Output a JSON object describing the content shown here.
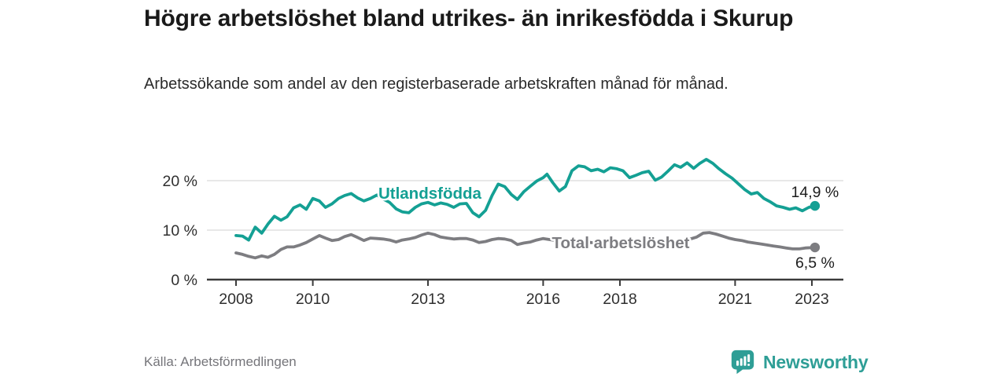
{
  "header": {
    "title": "Högre arbetslöshet bland utrikes- än inrikesfödda i Skurup",
    "subtitle": "Arbetssökande som andel av den registerbaserade arbetskraften månad för månad."
  },
  "footer": {
    "source": "Källa: Arbetsförmedlingen",
    "brand": "Newsworthy",
    "brand_icon": "newsworthy-bar-chart-speech-bubble-icon"
  },
  "colors": {
    "teal": "#14A094",
    "gray": "#7D7D81",
    "grid": "#DBDBDB",
    "axis": "#3B3B3B",
    "title_text": "#1A1A1A",
    "body_text": "#2B2B2B",
    "tick_text": "#2F2F2F",
    "annotation_text": "#1C1C1C",
    "source_text": "#75757A",
    "brand_teal": "#2E9E96"
  },
  "chart_data": {
    "type": "line",
    "x_unit": "year, monthly observations",
    "y_unit": "percent of registered labour force",
    "xlim": [
      2007.25,
      2023.85
    ],
    "ylim": [
      0,
      26
    ],
    "grid": "horizontal gridlines at 10 and 20, dark baseline at 0",
    "legend_position": "inline labels on lines, value annotations at line ends",
    "xticks": [
      2008,
      2010,
      2013,
      2016,
      2018,
      2021,
      2023
    ],
    "yticks": [
      {
        "value": 0,
        "label": "0 %"
      },
      {
        "value": 10,
        "label": "10 %"
      },
      {
        "value": 20,
        "label": "20 %"
      }
    ],
    "series": [
      {
        "name": "Utlandsfödda",
        "color": "#14A094",
        "line_label_at": {
          "t": 2013.05,
          "v": 17.45
        },
        "end_dot": {
          "t": 2023.08,
          "v": 14.9
        },
        "end_annotation": "14,9 %",
        "annotation_side": "above",
        "points": [
          [
            2008.0,
            8.9
          ],
          [
            2008.17,
            8.8
          ],
          [
            2008.33,
            8.0
          ],
          [
            2008.5,
            10.6
          ],
          [
            2008.67,
            9.4
          ],
          [
            2008.83,
            11.2
          ],
          [
            2009.0,
            12.8
          ],
          [
            2009.17,
            12.0
          ],
          [
            2009.33,
            12.7
          ],
          [
            2009.5,
            14.5
          ],
          [
            2009.67,
            15.1
          ],
          [
            2009.83,
            14.2
          ],
          [
            2010.0,
            16.4
          ],
          [
            2010.17,
            15.9
          ],
          [
            2010.33,
            14.6
          ],
          [
            2010.5,
            15.3
          ],
          [
            2010.67,
            16.4
          ],
          [
            2010.83,
            17.0
          ],
          [
            2011.0,
            17.4
          ],
          [
            2011.17,
            16.5
          ],
          [
            2011.33,
            15.9
          ],
          [
            2011.5,
            16.4
          ],
          [
            2011.67,
            17.1
          ],
          [
            2011.83,
            16.3
          ],
          [
            2012.0,
            15.6
          ],
          [
            2012.17,
            14.3
          ],
          [
            2012.33,
            13.7
          ],
          [
            2012.5,
            13.5
          ],
          [
            2012.67,
            14.6
          ],
          [
            2012.83,
            15.3
          ],
          [
            2013.0,
            15.6
          ],
          [
            2013.17,
            15.1
          ],
          [
            2013.33,
            15.5
          ],
          [
            2013.5,
            15.2
          ],
          [
            2013.67,
            14.6
          ],
          [
            2013.83,
            15.3
          ],
          [
            2014.0,
            15.4
          ],
          [
            2014.17,
            13.5
          ],
          [
            2014.33,
            12.7
          ],
          [
            2014.5,
            14.0
          ],
          [
            2014.67,
            17.0
          ],
          [
            2014.83,
            19.3
          ],
          [
            2015.0,
            18.8
          ],
          [
            2015.17,
            17.2
          ],
          [
            2015.33,
            16.2
          ],
          [
            2015.5,
            17.8
          ],
          [
            2015.67,
            18.9
          ],
          [
            2015.83,
            19.9
          ],
          [
            2016.0,
            20.6
          ],
          [
            2016.1,
            21.3
          ],
          [
            2016.25,
            19.6
          ],
          [
            2016.42,
            17.9
          ],
          [
            2016.58,
            18.8
          ],
          [
            2016.75,
            22.0
          ],
          [
            2016.92,
            23.0
          ],
          [
            2017.08,
            22.8
          ],
          [
            2017.25,
            22.0
          ],
          [
            2017.42,
            22.3
          ],
          [
            2017.58,
            21.8
          ],
          [
            2017.75,
            22.6
          ],
          [
            2017.92,
            22.4
          ],
          [
            2018.08,
            22.0
          ],
          [
            2018.25,
            20.6
          ],
          [
            2018.42,
            21.1
          ],
          [
            2018.58,
            21.6
          ],
          [
            2018.75,
            21.9
          ],
          [
            2018.92,
            20.1
          ],
          [
            2019.08,
            20.7
          ],
          [
            2019.25,
            21.9
          ],
          [
            2019.42,
            23.2
          ],
          [
            2019.58,
            22.7
          ],
          [
            2019.75,
            23.6
          ],
          [
            2019.92,
            22.5
          ],
          [
            2020.08,
            23.5
          ],
          [
            2020.25,
            24.3
          ],
          [
            2020.42,
            23.5
          ],
          [
            2020.58,
            22.4
          ],
          [
            2020.75,
            21.4
          ],
          [
            2020.92,
            20.5
          ],
          [
            2021.08,
            19.4
          ],
          [
            2021.25,
            18.2
          ],
          [
            2021.42,
            17.3
          ],
          [
            2021.58,
            17.6
          ],
          [
            2021.75,
            16.4
          ],
          [
            2021.92,
            15.7
          ],
          [
            2022.08,
            14.9
          ],
          [
            2022.25,
            14.6
          ],
          [
            2022.42,
            14.2
          ],
          [
            2022.58,
            14.5
          ],
          [
            2022.75,
            13.9
          ],
          [
            2022.92,
            14.6
          ],
          [
            2023.08,
            14.9
          ]
        ]
      },
      {
        "name": "Total arbetslöshet",
        "color": "#7D7D81",
        "line_label_at": {
          "t": 2018.02,
          "v": 7.45
        },
        "end_dot": {
          "t": 2023.08,
          "v": 6.5
        },
        "end_annotation": "6,5 %",
        "annotation_side": "below",
        "points": [
          [
            2008.0,
            5.4
          ],
          [
            2008.17,
            5.1
          ],
          [
            2008.33,
            4.7
          ],
          [
            2008.5,
            4.4
          ],
          [
            2008.67,
            4.8
          ],
          [
            2008.83,
            4.5
          ],
          [
            2009.0,
            5.1
          ],
          [
            2009.17,
            6.1
          ],
          [
            2009.33,
            6.6
          ],
          [
            2009.5,
            6.6
          ],
          [
            2009.67,
            7.0
          ],
          [
            2009.83,
            7.5
          ],
          [
            2010.0,
            8.2
          ],
          [
            2010.17,
            8.9
          ],
          [
            2010.33,
            8.4
          ],
          [
            2010.5,
            7.9
          ],
          [
            2010.67,
            8.1
          ],
          [
            2010.83,
            8.7
          ],
          [
            2011.0,
            9.1
          ],
          [
            2011.17,
            8.5
          ],
          [
            2011.33,
            7.9
          ],
          [
            2011.5,
            8.4
          ],
          [
            2011.67,
            8.3
          ],
          [
            2011.83,
            8.2
          ],
          [
            2012.0,
            8.0
          ],
          [
            2012.17,
            7.6
          ],
          [
            2012.33,
            8.0
          ],
          [
            2012.5,
            8.2
          ],
          [
            2012.67,
            8.5
          ],
          [
            2012.83,
            9.0
          ],
          [
            2013.0,
            9.4
          ],
          [
            2013.17,
            9.1
          ],
          [
            2013.33,
            8.6
          ],
          [
            2013.5,
            8.4
          ],
          [
            2013.67,
            8.2
          ],
          [
            2013.83,
            8.3
          ],
          [
            2014.0,
            8.3
          ],
          [
            2014.17,
            8.0
          ],
          [
            2014.33,
            7.5
          ],
          [
            2014.5,
            7.7
          ],
          [
            2014.67,
            8.1
          ],
          [
            2014.83,
            8.3
          ],
          [
            2015.0,
            8.2
          ],
          [
            2015.17,
            7.9
          ],
          [
            2015.33,
            7.1
          ],
          [
            2015.5,
            7.4
          ],
          [
            2015.67,
            7.6
          ],
          [
            2015.83,
            8.0
          ],
          [
            2016.0,
            8.3
          ],
          [
            2016.25,
            8.0
          ],
          [
            2016.5,
            7.8
          ],
          [
            2016.75,
            7.6
          ],
          [
            2017.0,
            7.7
          ],
          [
            2017.25,
            7.5
          ],
          [
            2017.5,
            7.4
          ],
          [
            2017.75,
            7.6
          ],
          [
            2018.0,
            7.5
          ],
          [
            2018.25,
            7.3
          ],
          [
            2018.5,
            7.2
          ],
          [
            2018.75,
            7.4
          ],
          [
            2019.0,
            7.2
          ],
          [
            2019.25,
            7.4
          ],
          [
            2019.5,
            7.6
          ],
          [
            2019.75,
            8.0
          ],
          [
            2020.0,
            8.6
          ],
          [
            2020.17,
            9.4
          ],
          [
            2020.33,
            9.5
          ],
          [
            2020.5,
            9.2
          ],
          [
            2020.67,
            8.8
          ],
          [
            2020.83,
            8.4
          ],
          [
            2021.0,
            8.1
          ],
          [
            2021.17,
            7.9
          ],
          [
            2021.33,
            7.6
          ],
          [
            2021.5,
            7.4
          ],
          [
            2021.67,
            7.2
          ],
          [
            2021.83,
            7.0
          ],
          [
            2022.0,
            6.8
          ],
          [
            2022.17,
            6.6
          ],
          [
            2022.33,
            6.4
          ],
          [
            2022.5,
            6.2
          ],
          [
            2022.67,
            6.2
          ],
          [
            2022.83,
            6.4
          ],
          [
            2023.08,
            6.5
          ]
        ]
      }
    ]
  }
}
